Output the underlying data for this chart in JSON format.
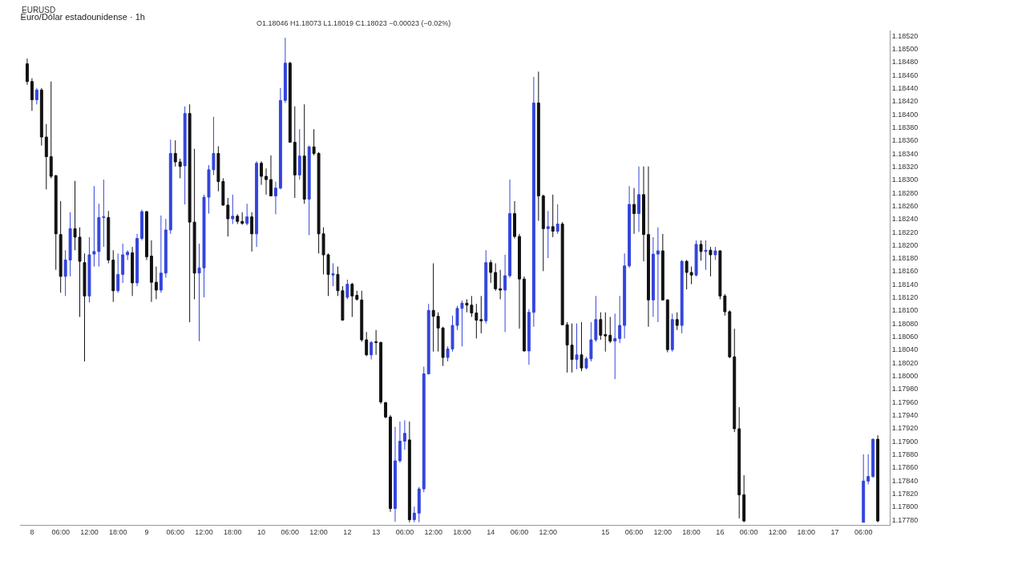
{
  "chart_data": {
    "type": "candlestick",
    "title": "Euro/Dólar estadounidense · 1h",
    "annotations": [
      "EURUSD",
      "O1.18046 H1.18073 L1.18019 C1.18023 −0.00023 (−0.02%)"
    ],
    "colors": [
      "#111111",
      "#111111",
      "#3344dd",
      "#111111",
      "#111111",
      "#111111",
      "#111111",
      "#111111",
      "#3344dd",
      "#3344dd",
      "#111111",
      "#111111",
      "#111111",
      "#3344dd",
      "#3344dd",
      "#3344dd",
      "#3344dd",
      "#111111",
      "#111111",
      "#3344dd",
      "#3344dd",
      "#3344dd",
      "#111111",
      "#3344dd",
      "#3344dd",
      "#111111",
      "#111111",
      "#111111",
      "#3344dd",
      "#3344dd",
      "#3344dd",
      "#111111",
      "#111111",
      "#3344dd",
      "#111111",
      "#111111",
      "#3344dd",
      "#3344dd",
      "#3344dd",
      "#3344dd",
      "#111111",
      "#111111",
      "#111111",
      "#3344dd",
      "#111111",
      "#111111",
      "#3344dd",
      "#111111",
      "#3344dd",
      "#111111",
      "#111111",
      "#111111",
      "#3344dd",
      "#3344dd",
      "#3344dd",
      "#111111",
      "#111111",
      "#3344dd",
      "#111111",
      "#3344dd",
      "#111111",
      "#111111",
      "#111111",
      "#111111",
      "#3344dd",
      "#111111",
      "#111111",
      "#3344dd",
      "#111111",
      "#111111",
      "#111111",
      "#111111",
      "#3344dd",
      "#111111",
      "#111111",
      "#111111",
      "#111111",
      "#3344dd",
      "#3344dd",
      "#3344dd",
      "#111111",
      "#3344dd",
      "#3344dd",
      "#3344dd",
      "#3344dd",
      "#111111",
      "#111111",
      "#111111",
      "#3344dd",
      "#3344dd",
      "#3344dd",
      "#3344dd",
      "#111111",
      "#111111",
      "#111111",
      "#111111",
      "#3344dd",
      "#111111",
      "#111111",
      "#111111",
      "#3344dd",
      "#3344dd",
      "#111111",
      "#111111",
      "#111111",
      "#3344dd",
      "#3344dd",
      "#111111",
      "#111111",
      "#3344dd",
      "#111111",
      "#3344dd",
      "#111111",
      "#111111",
      "#111111",
      "#3344dd",
      "#111111",
      "#3344dd",
      "#3344dd",
      "#3344dd",
      "#111111",
      "#111111",
      "#111111",
      "#3344dd",
      "#3344dd",
      "#3344dd",
      "#3344dd",
      "#111111",
      "#3344dd",
      "#111111",
      "#111111",
      "#3344dd",
      "#3344dd",
      "#111111",
      "#111111",
      "#3344dd",
      "#111111",
      "#3344dd",
      "#111111",
      "#111111",
      "#3344dd",
      "#111111",
      "#3344dd",
      "#111111",
      "#3344dd",
      "#111111",
      "#111111",
      "#111111",
      "#111111",
      "#111111",
      "#111111",
      null,
      null,
      null,
      null,
      null,
      null,
      null,
      null,
      null,
      null,
      null,
      null,
      null,
      null,
      null,
      null,
      null,
      null,
      null,
      null,
      null,
      null,
      null,
      null,
      "#3344dd",
      "#3344dd",
      "#3344dd",
      "#111111"
    ],
    "grid": false,
    "legend": false,
    "categories": [
      null,
      "8",
      null,
      null,
      null,
      null,
      null,
      "06:00",
      null,
      null,
      null,
      null,
      null,
      "12:00",
      null,
      null,
      null,
      null,
      null,
      "18:00",
      null,
      null,
      null,
      null,
      null,
      "9",
      null,
      null,
      null,
      null,
      null,
      "06:00",
      null,
      null,
      null,
      null,
      null,
      "12:00",
      null,
      null,
      null,
      null,
      null,
      "18:00",
      null,
      null,
      null,
      null,
      null,
      "10",
      null,
      null,
      null,
      null,
      null,
      "06:00",
      null,
      null,
      null,
      null,
      null,
      "12:00",
      null,
      null,
      null,
      null,
      null,
      "12",
      null,
      null,
      null,
      null,
      null,
      "13",
      null,
      null,
      null,
      null,
      null,
      "06:00",
      null,
      null,
      null,
      null,
      null,
      "12:00",
      null,
      null,
      null,
      null,
      null,
      "18:00",
      null,
      null,
      null,
      null,
      null,
      "14",
      null,
      null,
      null,
      null,
      null,
      "06:00",
      null,
      null,
      null,
      null,
      null,
      "12:00",
      null,
      null,
      null,
      null,
      null,
      null,
      null,
      null,
      null,
      null,
      null,
      "15",
      null,
      null,
      null,
      null,
      null,
      "06:00",
      null,
      null,
      null,
      null,
      null,
      "12:00",
      null,
      null,
      null,
      null,
      null,
      "18:00",
      null,
      null,
      null,
      null,
      null,
      "16",
      null,
      null,
      null,
      null,
      null,
      "06:00",
      null,
      null,
      null,
      null,
      null,
      "12:00",
      null,
      null,
      null,
      null,
      null,
      "18:00",
      null,
      null,
      null,
      null,
      null,
      "17",
      null,
      null,
      null,
      null,
      null,
      "06:00",
      null,
      null,
      null
    ],
    "ylim": [
      1.17772,
      1.18528
    ],
    "yticks": [
      {
        "value": 1.1778,
        "label": "1.17780"
      },
      {
        "value": 1.178,
        "label": "1.17800"
      },
      {
        "value": 1.1782,
        "label": "1.17820"
      },
      {
        "value": 1.1784,
        "label": "1.17840"
      },
      {
        "value": 1.1786,
        "label": "1.17860"
      },
      {
        "value": 1.1788,
        "label": "1.17880"
      },
      {
        "value": 1.179,
        "label": "1.17900"
      },
      {
        "value": 1.1792,
        "label": "1.17920"
      },
      {
        "value": 1.1794,
        "label": "1.17940"
      },
      {
        "value": 1.1796,
        "label": "1.17960"
      },
      {
        "value": 1.1798,
        "label": "1.17980"
      },
      {
        "value": 1.18,
        "label": "1.18000"
      },
      {
        "value": 1.1802,
        "label": "1.18020"
      },
      {
        "value": 1.1804,
        "label": "1.18040"
      },
      {
        "value": 1.1806,
        "label": "1.18060"
      },
      {
        "value": 1.1808,
        "label": "1.18080"
      },
      {
        "value": 1.181,
        "label": "1.18100"
      },
      {
        "value": 1.1812,
        "label": "1.18120"
      },
      {
        "value": 1.1814,
        "label": "1.18140"
      },
      {
        "value": 1.1816,
        "label": "1.18160"
      },
      {
        "value": 1.1818,
        "label": "1.18180"
      },
      {
        "value": 1.182,
        "label": "1.18200"
      },
      {
        "value": 1.1822,
        "label": "1.18220"
      },
      {
        "value": 1.1824,
        "label": "1.18240"
      },
      {
        "value": 1.1826,
        "label": "1.18260"
      },
      {
        "value": 1.1828,
        "label": "1.18280"
      },
      {
        "value": 1.183,
        "label": "1.18300"
      },
      {
        "value": 1.1832,
        "label": "1.18320"
      },
      {
        "value": 1.1834,
        "label": "1.18340"
      },
      {
        "value": 1.1836,
        "label": "1.18360"
      },
      {
        "value": 1.1838,
        "label": "1.18380"
      },
      {
        "value": 1.184,
        "label": "1.18400"
      },
      {
        "value": 1.1842,
        "label": "1.18420"
      },
      {
        "value": 1.1844,
        "label": "1.18440"
      },
      {
        "value": 1.1846,
        "label": "1.18460"
      },
      {
        "value": 1.1848,
        "label": "1.18480"
      },
      {
        "value": 1.185,
        "label": "1.18500"
      },
      {
        "value": 1.1852,
        "label": "1.18520"
      }
    ],
    "ohlc": [
      [
        1.18477,
        1.18485,
        1.18445,
        1.1845
      ],
      [
        1.1845,
        1.18455,
        1.18405,
        1.18422
      ],
      [
        1.18422,
        1.1844,
        1.18415,
        1.18437
      ],
      [
        1.18437,
        1.1844,
        1.18352,
        1.18365
      ],
      [
        1.18365,
        1.18385,
        1.18285,
        1.18335
      ],
      [
        1.18335,
        1.1845,
        1.18302,
        1.18305
      ],
      [
        1.18306,
        1.18307,
        1.18162,
        1.18217
      ],
      [
        1.18216,
        1.18267,
        1.18127,
        1.18152
      ],
      [
        1.18152,
        1.18192,
        1.18122,
        1.18177
      ],
      [
        1.18177,
        1.1825,
        1.18152,
        1.18225
      ],
      [
        1.18225,
        1.18298,
        1.18192,
        1.18212
      ],
      [
        1.18212,
        1.18227,
        1.1809,
        1.18175
      ],
      [
        1.18173,
        1.18187,
        1.18022,
        1.18122
      ],
      [
        1.18122,
        1.18212,
        1.18112,
        1.18185
      ],
      [
        1.18186,
        1.1829,
        1.18167,
        1.1819
      ],
      [
        1.1819,
        1.18263,
        1.18167,
        1.18242
      ],
      [
        1.18242,
        1.183,
        1.18197,
        1.18243
      ],
      [
        1.18242,
        1.18252,
        1.18172,
        1.18177
      ],
      [
        1.18177,
        1.18192,
        1.18113,
        1.1813
      ],
      [
        1.1813,
        1.18187,
        1.18127,
        1.18155
      ],
      [
        1.18155,
        1.18202,
        1.18142,
        1.18185
      ],
      [
        1.18185,
        1.18192,
        1.18177,
        1.18189
      ],
      [
        1.18188,
        1.18197,
        1.18122,
        1.18142
      ],
      [
        1.18142,
        1.18217,
        1.18137,
        1.1821
      ],
      [
        1.1821,
        1.18254,
        1.18207,
        1.18251
      ],
      [
        1.18251,
        1.18252,
        1.18177,
        1.18182
      ],
      [
        1.18183,
        1.18207,
        1.18113,
        1.18143
      ],
      [
        1.18143,
        1.18167,
        1.18117,
        1.18131
      ],
      [
        1.18131,
        1.18245,
        1.18127,
        1.18157
      ],
      [
        1.18157,
        1.1824,
        1.1815,
        1.18223
      ],
      [
        1.18223,
        1.18361,
        1.18217,
        1.1834
      ],
      [
        1.1834,
        1.1836,
        1.1832,
        1.18327
      ],
      [
        1.18327,
        1.18332,
        1.18302,
        1.1832
      ],
      [
        1.18321,
        1.18412,
        1.18262,
        1.18401
      ],
      [
        1.18401,
        1.18415,
        1.18082,
        1.18235
      ],
      [
        1.18235,
        1.18347,
        1.18117,
        1.18157
      ],
      [
        1.18157,
        1.18202,
        1.18053,
        1.18165
      ],
      [
        1.18165,
        1.18277,
        1.1812,
        1.18273
      ],
      [
        1.18273,
        1.18322,
        1.18248,
        1.18315
      ],
      [
        1.18315,
        1.18396,
        1.18307,
        1.1834
      ],
      [
        1.1834,
        1.18351,
        1.18282,
        1.18297
      ],
      [
        1.18297,
        1.18302,
        1.1826,
        1.18261
      ],
      [
        1.18261,
        1.18272,
        1.18213,
        1.1824
      ],
      [
        1.1824,
        1.18277,
        1.18232,
        1.18244
      ],
      [
        1.18244,
        1.18247,
        1.18232,
        1.18236
      ],
      [
        1.18236,
        1.1825,
        1.18231,
        1.18233
      ],
      [
        1.18233,
        1.18263,
        1.1823,
        1.18243
      ],
      [
        1.18243,
        1.1825,
        1.1819,
        1.18217
      ],
      [
        1.18217,
        1.18328,
        1.18197,
        1.18325
      ],
      [
        1.18325,
        1.18328,
        1.18292,
        1.18305
      ],
      [
        1.18305,
        1.18317,
        1.18277,
        1.183
      ],
      [
        1.183,
        1.18337,
        1.18275,
        1.18275
      ],
      [
        1.18275,
        1.18297,
        1.18247,
        1.18287
      ],
      [
        1.18287,
        1.1844,
        1.18285,
        1.18421
      ],
      [
        1.18421,
        1.18517,
        1.18417,
        1.18478
      ],
      [
        1.18478,
        1.1848,
        1.18357,
        1.18357
      ],
      [
        1.18357,
        1.18412,
        1.18272,
        1.18307
      ],
      [
        1.18307,
        1.18377,
        1.183,
        1.18336
      ],
      [
        1.18336,
        1.18415,
        1.18263,
        1.1827
      ],
      [
        1.1827,
        1.18352,
        1.18215,
        1.1835
      ],
      [
        1.1835,
        1.18377,
        1.18337,
        1.1834
      ],
      [
        1.1834,
        1.18342,
        1.18187,
        1.18217
      ],
      [
        1.18217,
        1.18227,
        1.18155,
        1.18185
      ],
      [
        1.18185,
        1.18187,
        1.18122,
        1.18155
      ],
      [
        1.18154,
        1.18172,
        1.18137,
        1.18156
      ],
      [
        1.18155,
        1.18167,
        1.18122,
        1.1813
      ],
      [
        1.1813,
        1.18137,
        1.18085,
        1.18085
      ],
      [
        1.1812,
        1.18147,
        1.18117,
        1.1814
      ],
      [
        1.1814,
        1.18142,
        1.1809,
        1.18122
      ],
      [
        1.18123,
        1.1813,
        1.18115,
        1.18117
      ],
      [
        1.18116,
        1.1813,
        1.18052,
        1.18055
      ],
      [
        1.18055,
        1.18067,
        1.1803,
        1.18032
      ],
      [
        1.18032,
        1.18053,
        1.18025,
        1.18051
      ],
      [
        1.18052,
        1.1807,
        1.18032,
        1.18051
      ],
      [
        1.18051,
        1.18052,
        1.17957,
        1.1796
      ],
      [
        1.17959,
        1.1796,
        1.17935,
        1.17937
      ],
      [
        1.17937,
        1.1794,
        1.17792,
        1.17797
      ],
      [
        1.17797,
        1.17922,
        1.17777,
        1.1787
      ],
      [
        1.1787,
        1.1793,
        1.17867,
        1.179
      ],
      [
        1.179,
        1.17932,
        1.17887,
        1.17912
      ],
      [
        1.17902,
        1.1793,
        1.17776,
        1.1778
      ],
      [
        1.1778,
        1.178,
        1.17776,
        1.1779
      ],
      [
        1.1779,
        1.1783,
        1.17776,
        1.17827
      ],
      [
        1.17827,
        1.18014,
        1.17822,
        1.18003
      ],
      [
        1.18003,
        1.1811,
        1.18002,
        1.181
      ],
      [
        1.181,
        1.18172,
        1.18037,
        1.18091
      ],
      [
        1.18091,
        1.18097,
        1.18037,
        1.18073
      ],
      [
        1.18073,
        1.18075,
        1.18015,
        1.18028
      ],
      [
        1.18028,
        1.18045,
        1.18022,
        1.18041
      ],
      [
        1.18041,
        1.18092,
        1.18037,
        1.18077
      ],
      [
        1.18077,
        1.18107,
        1.1807,
        1.18103
      ],
      [
        1.18103,
        1.18115,
        1.18045,
        1.18111
      ],
      [
        1.18111,
        1.18117,
        1.18097,
        1.18108
      ],
      [
        1.18108,
        1.18122,
        1.1809,
        1.18096
      ],
      [
        1.18096,
        1.1811,
        1.18057,
        1.18085
      ],
      [
        1.18086,
        1.18122,
        1.18065,
        1.18084
      ],
      [
        1.18084,
        1.18192,
        1.1808,
        1.18173
      ],
      [
        1.18173,
        1.18177,
        1.18142,
        1.18158
      ],
      [
        1.18158,
        1.18172,
        1.1813,
        1.18133
      ],
      [
        1.18133,
        1.18162,
        1.18117,
        1.18131
      ],
      [
        1.18131,
        1.18185,
        1.18067,
        1.18153
      ],
      [
        1.18153,
        1.183,
        1.1815,
        1.18248
      ],
      [
        1.18248,
        1.18267,
        1.1821,
        1.18213
      ],
      [
        1.18213,
        1.18217,
        1.18072,
        1.18148
      ],
      [
        1.18148,
        1.18152,
        1.18037,
        1.18038
      ],
      [
        1.18038,
        1.18102,
        1.18017,
        1.18097
      ],
      [
        1.18097,
        1.18457,
        1.18075,
        1.18417
      ],
      [
        1.18417,
        1.18465,
        1.18237,
        1.18275
      ],
      [
        1.18275,
        1.18277,
        1.1816,
        1.18225
      ],
      [
        1.18225,
        1.18252,
        1.1818,
        1.18228
      ],
      [
        1.18228,
        1.18277,
        1.18212,
        1.18221
      ],
      [
        1.18221,
        1.18262,
        1.18217,
        1.18232
      ],
      [
        1.18232,
        1.18235,
        1.18077,
        1.18078
      ],
      [
        1.18078,
        1.18082,
        1.18005,
        1.18047
      ],
      [
        1.18047,
        1.1808,
        1.18005,
        1.18025
      ],
      [
        1.18025,
        1.1808,
        1.1801,
        1.18032
      ],
      [
        1.18032,
        1.18082,
        1.18007,
        1.18012
      ],
      [
        1.18012,
        1.18029,
        1.1801,
        1.18026
      ],
      [
        1.18026,
        1.18082,
        1.18022,
        1.18055
      ],
      [
        1.18055,
        1.18122,
        1.18052,
        1.18086
      ],
      [
        1.18086,
        1.18097,
        1.18055,
        1.18062
      ],
      [
        1.18063,
        1.18097,
        1.18037,
        1.18061
      ],
      [
        1.18062,
        1.1809,
        1.1805,
        1.18053
      ],
      [
        1.18053,
        1.18095,
        1.17995,
        1.18057
      ],
      [
        1.18057,
        1.18122,
        1.1805,
        1.18077
      ],
      [
        1.18077,
        1.18187,
        1.18057,
        1.18168
      ],
      [
        1.18168,
        1.1829,
        1.18165,
        1.18262
      ],
      [
        1.18262,
        1.18287,
        1.18217,
        1.18248
      ],
      [
        1.18248,
        1.1832,
        1.1822,
        1.18277
      ],
      [
        1.18277,
        1.1832,
        1.18175,
        1.18216
      ],
      [
        1.18216,
        1.1832,
        1.18075,
        1.18116
      ],
      [
        1.18116,
        1.18212,
        1.1809,
        1.18186
      ],
      [
        1.18186,
        1.18227,
        1.18082,
        1.18191
      ],
      [
        1.18191,
        1.18217,
        1.18115,
        1.18116
      ],
      [
        1.18116,
        1.18117,
        1.18036,
        1.1804
      ],
      [
        1.1804,
        1.18095,
        1.18037,
        1.18086
      ],
      [
        1.18086,
        1.18097,
        1.1807,
        1.18077
      ],
      [
        1.18077,
        1.18177,
        1.18065,
        1.18175
      ],
      [
        1.18175,
        1.18177,
        1.18132,
        1.18158
      ],
      [
        1.18158,
        1.18167,
        1.1814,
        1.18154
      ],
      [
        1.18154,
        1.18207,
        1.18152,
        1.18201
      ],
      [
        1.18201,
        1.18207,
        1.18176,
        1.1819
      ],
      [
        1.1819,
        1.18207,
        1.18162,
        1.18192
      ],
      [
        1.18192,
        1.18197,
        1.18152,
        1.18185
      ],
      [
        1.18185,
        1.18197,
        1.18177,
        1.18191
      ],
      [
        1.18191,
        1.18192,
        1.18117,
        1.18122
      ],
      [
        1.18122,
        1.18125,
        1.18092,
        1.18098
      ],
      [
        1.18098,
        1.181,
        1.18027,
        1.18029
      ],
      [
        1.18029,
        1.18072,
        1.17914,
        1.17919
      ],
      [
        1.17919,
        1.17952,
        1.17782,
        1.17818
      ],
      [
        1.17818,
        1.17848,
        1.17776,
        1.17778
      ],
      null,
      null,
      null,
      null,
      null,
      null,
      null,
      null,
      null,
      null,
      null,
      null,
      null,
      null,
      null,
      null,
      null,
      null,
      null,
      null,
      null,
      null,
      null,
      null,
      [
        1.17776,
        1.1788,
        1.17776,
        1.17839
      ],
      [
        1.17839,
        1.1788,
        1.17834,
        1.17846
      ],
      [
        1.17846,
        1.17904,
        1.17844,
        1.17903
      ],
      [
        1.17903,
        1.17909,
        1.17776,
        1.17778
      ]
    ]
  }
}
